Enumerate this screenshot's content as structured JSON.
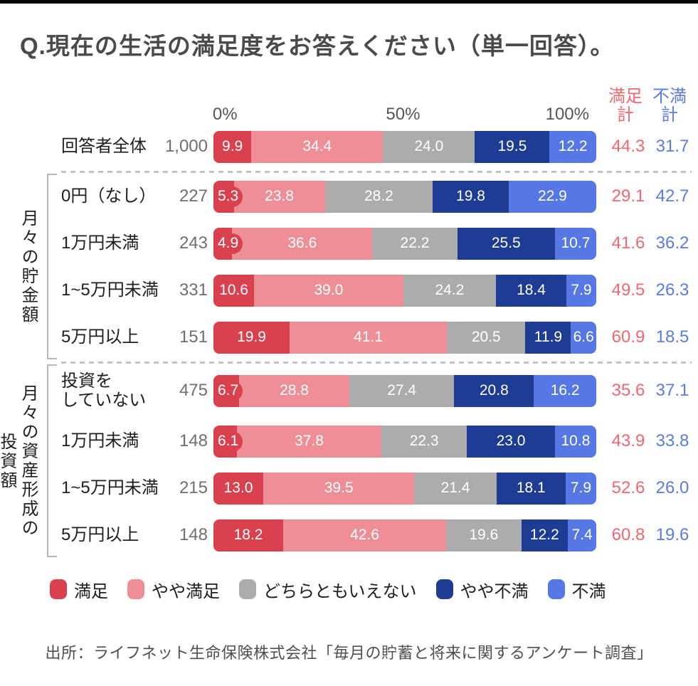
{
  "page": {
    "title": "Q.現在の生活の満足度をお答えください（単一回答）。",
    "source": "出所：ライフネット生命保険株式会社「毎月の貯蓄と将来に関するアンケート調査」"
  },
  "axis": {
    "tick_0": "0%",
    "tick_50": "50%",
    "tick_100": "100%"
  },
  "totals_headers": {
    "satisfied": "満足\n計",
    "dissatisfied": "不満\n計",
    "satisfied_color": "#F2686E",
    "dissatisfied_color": "#5B7CE4"
  },
  "legend": [
    {
      "key": "manzoku",
      "label": "満足",
      "color": "#D8414D"
    },
    {
      "key": "yaya-manzoku",
      "label": "やや満足",
      "color": "#EE8E96"
    },
    {
      "key": "neutral",
      "label": "どちらともいえない",
      "color": "#ACACAC"
    },
    {
      "key": "yaya-fuman",
      "label": "やや不満",
      "color": "#1E3C94"
    },
    {
      "key": "fuman",
      "label": "不満",
      "color": "#5578E4"
    }
  ],
  "groups": [
    {
      "label": "月々の貯金額"
    },
    {
      "label": "月々の資産形成の\n投資額"
    }
  ],
  "rows": [
    {
      "group": 0,
      "label": "回答者全体",
      "n": "1,000",
      "values": [
        "9.9",
        "34.4",
        "24.0",
        "19.5",
        "12.2"
      ],
      "sat": "44.3",
      "dis": "31.7"
    },
    {
      "group": 1,
      "label": "0円（なし）",
      "n": "227",
      "values": [
        "5.3",
        "23.8",
        "28.2",
        "19.8",
        "22.9"
      ],
      "sat": "29.1",
      "dis": "42.7"
    },
    {
      "group": 1,
      "label": "1万円未満",
      "n": "243",
      "values": [
        "4.9",
        "36.6",
        "22.2",
        "25.5",
        "10.7"
      ],
      "sat": "41.6",
      "dis": "36.2"
    },
    {
      "group": 1,
      "label": "1~5万円未満",
      "n": "331",
      "values": [
        "10.6",
        "39.0",
        "24.2",
        "18.4",
        "7.9"
      ],
      "sat": "49.5",
      "dis": "26.3"
    },
    {
      "group": 1,
      "label": "5万円以上",
      "n": "151",
      "values": [
        "19.9",
        "41.1",
        "20.5",
        "11.9",
        "6.6"
      ],
      "sat": "60.9",
      "dis": "18.5"
    },
    {
      "group": 2,
      "label": "投資を\nしていない",
      "n": "475",
      "values": [
        "6.7",
        "28.8",
        "27.4",
        "20.8",
        "16.2"
      ],
      "sat": "35.6",
      "dis": "37.1"
    },
    {
      "group": 2,
      "label": "1万円未満",
      "n": "148",
      "values": [
        "6.1",
        "37.8",
        "22.3",
        "23.0",
        "10.8"
      ],
      "sat": "43.9",
      "dis": "33.8"
    },
    {
      "group": 2,
      "label": "1~5万円未満",
      "n": "215",
      "values": [
        "13.0",
        "39.5",
        "21.4",
        "18.1",
        "7.9"
      ],
      "sat": "52.6",
      "dis": "26.0"
    },
    {
      "group": 2,
      "label": "5万円以上",
      "n": "148",
      "values": [
        "18.2",
        "42.6",
        "19.6",
        "12.2",
        "7.4"
      ],
      "sat": "60.8",
      "dis": "19.6"
    }
  ],
  "chart_data": {
    "type": "bar",
    "orientation": "horizontal",
    "stacked": true,
    "title": "Q.現在の生活の満足度をお答えください（単一回答）。",
    "x_range": [
      0,
      100
    ],
    "x_ticks": [
      "0%",
      "50%",
      "100%"
    ],
    "legend_position": "bottom",
    "categories": [
      "回答者全体",
      "0円（なし）",
      "1万円未満",
      "1~5万円未満",
      "5万円以上",
      "投資をしていない",
      "1万円未満",
      "1~5万円未満",
      "5万円以上"
    ],
    "sample_sizes": [
      1000,
      227,
      243,
      331,
      151,
      475,
      148,
      215,
      148
    ],
    "category_groups": [
      {
        "label": "月々の貯金額",
        "category_indices": [
          1,
          2,
          3,
          4
        ]
      },
      {
        "label": "月々の資産形成の投資額",
        "category_indices": [
          5,
          6,
          7,
          8
        ]
      }
    ],
    "series": [
      {
        "name": "満足",
        "color": "#D8414D",
        "values": [
          9.9,
          5.3,
          4.9,
          10.6,
          19.9,
          6.7,
          6.1,
          13.0,
          18.2
        ]
      },
      {
        "name": "やや満足",
        "color": "#EE8E96",
        "values": [
          34.4,
          23.8,
          36.6,
          39.0,
          41.1,
          28.8,
          37.8,
          39.5,
          42.6
        ]
      },
      {
        "name": "どちらともいえない",
        "color": "#ACACAC",
        "values": [
          24.0,
          28.2,
          22.2,
          24.2,
          20.5,
          27.4,
          22.3,
          21.4,
          19.6
        ]
      },
      {
        "name": "やや不満",
        "color": "#1E3C94",
        "values": [
          19.5,
          19.8,
          25.5,
          18.4,
          11.9,
          20.8,
          23.0,
          18.1,
          12.2
        ]
      },
      {
        "name": "不満",
        "color": "#5578E4",
        "values": [
          12.2,
          22.9,
          10.7,
          7.9,
          6.6,
          16.2,
          10.8,
          7.9,
          7.4
        ]
      }
    ],
    "totals_columns": [
      {
        "name": "満足計",
        "color": "#F2686E",
        "values": [
          44.3,
          29.1,
          41.6,
          49.5,
          60.9,
          35.6,
          43.9,
          52.6,
          60.8
        ]
      },
      {
        "name": "不満計",
        "color": "#5B7CE4",
        "values": [
          31.7,
          42.7,
          36.2,
          26.3,
          18.5,
          37.1,
          33.8,
          26.0,
          19.6
        ]
      }
    ]
  }
}
